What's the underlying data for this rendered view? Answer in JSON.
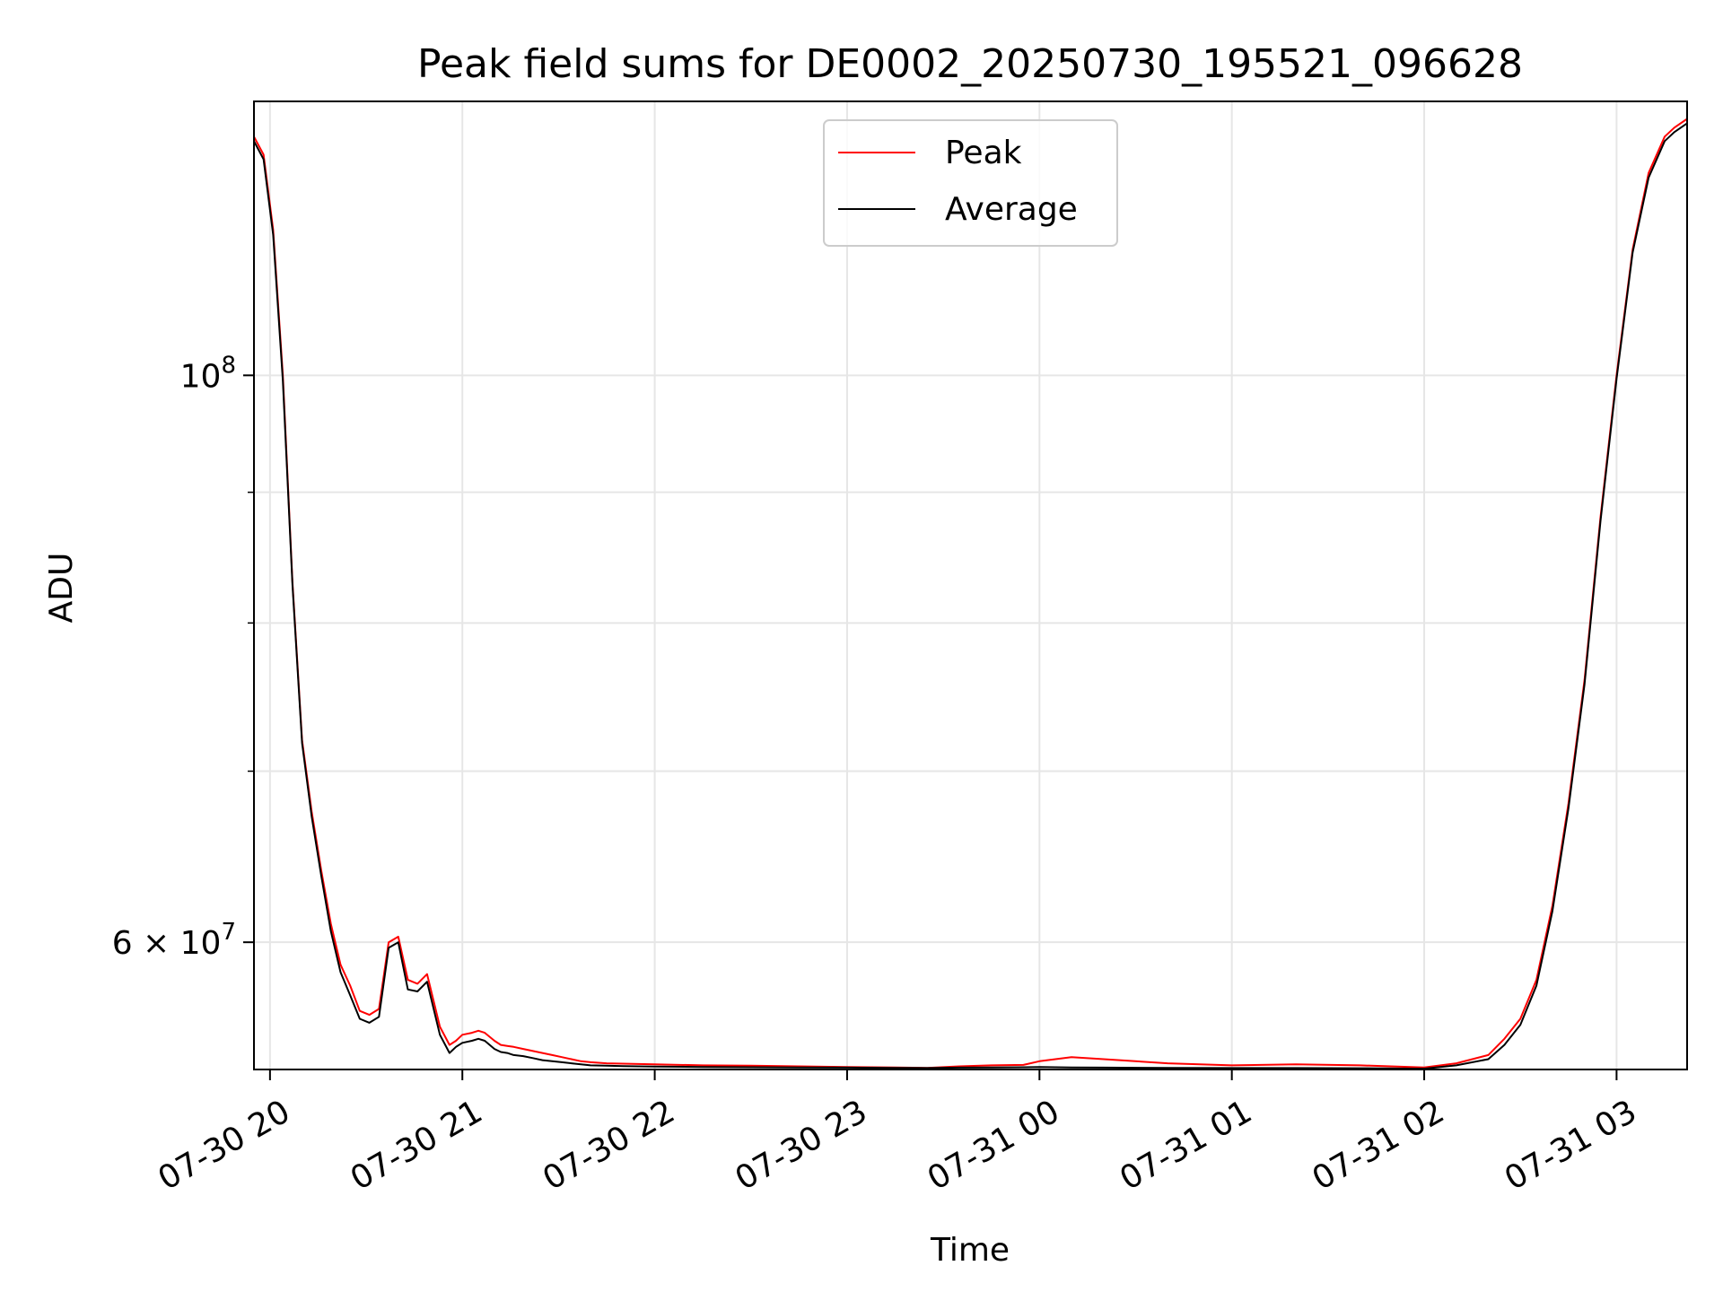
{
  "chart_data": {
    "type": "line",
    "title": "Peak field sums for DE0002_20250730_195521_096628",
    "xlabel": "Time",
    "ylabel": "ADU",
    "y_scale": "log",
    "ylim": [
      53500000,
      128000000
    ],
    "xlim": [
      "2025-07-30 19:55",
      "2025-07-31 03:22"
    ],
    "x_tick_labels": [
      "07-30 20",
      "07-30 21",
      "07-30 22",
      "07-30 23",
      "07-31 00",
      "07-31 01",
      "07-31 02",
      "07-31 03"
    ],
    "x_tick_values": [
      "2025-07-30 20:00",
      "2025-07-30 21:00",
      "2025-07-30 22:00",
      "2025-07-30 23:00",
      "2025-07-31 00:00",
      "2025-07-31 01:00",
      "2025-07-31 02:00",
      "2025-07-31 03:00"
    ],
    "y_major_ticks": [
      {
        "value": 60000000,
        "mantissa": "6",
        "exponent": "7"
      },
      {
        "value": 100000000,
        "mantissa": "",
        "exponent": "8"
      }
    ],
    "y_minor_ticks": [
      70000000,
      80000000,
      90000000
    ],
    "grid": true,
    "legend_position": "upper-center",
    "series": [
      {
        "name": "Peak",
        "color": "#ff0000",
        "x": [
          "2025-07-30 19:55",
          "2025-07-30 19:58",
          "2025-07-30 20:01",
          "2025-07-30 20:04",
          "2025-07-30 20:07",
          "2025-07-30 20:10",
          "2025-07-30 20:13",
          "2025-07-30 20:16",
          "2025-07-30 20:19",
          "2025-07-30 20:22",
          "2025-07-30 20:25",
          "2025-07-30 20:28",
          "2025-07-30 20:31",
          "2025-07-30 20:34",
          "2025-07-30 20:37",
          "2025-07-30 20:40",
          "2025-07-30 20:43",
          "2025-07-30 20:46",
          "2025-07-30 20:49",
          "2025-07-30 20:53",
          "2025-07-30 20:56",
          "2025-07-30 20:58",
          "2025-07-30 21:00",
          "2025-07-30 21:03",
          "2025-07-30 21:05",
          "2025-07-30 21:07",
          "2025-07-30 21:10",
          "2025-07-30 21:12",
          "2025-07-30 21:14",
          "2025-07-30 21:16",
          "2025-07-30 21:19",
          "2025-07-30 21:22",
          "2025-07-30 21:25",
          "2025-07-30 21:28",
          "2025-07-30 21:31",
          "2025-07-30 21:34",
          "2025-07-30 21:37",
          "2025-07-30 21:40",
          "2025-07-30 21:45",
          "2025-07-30 21:50",
          "2025-07-30 22:00",
          "2025-07-30 22:15",
          "2025-07-30 22:30",
          "2025-07-30 22:45",
          "2025-07-30 23:00",
          "2025-07-30 23:15",
          "2025-07-30 23:25",
          "2025-07-30 23:35",
          "2025-07-30 23:45",
          "2025-07-30 23:55",
          "2025-07-31 00:00",
          "2025-07-31 00:10",
          "2025-07-31 00:20",
          "2025-07-31 00:40",
          "2025-07-31 01:00",
          "2025-07-31 01:20",
          "2025-07-31 01:40",
          "2025-07-31 02:00",
          "2025-07-31 02:10",
          "2025-07-31 02:20",
          "2025-07-31 02:25",
          "2025-07-31 02:30",
          "2025-07-31 02:35",
          "2025-07-31 02:40",
          "2025-07-31 02:45",
          "2025-07-31 02:50",
          "2025-07-31 02:55",
          "2025-07-31 03:00",
          "2025-07-31 03:05",
          "2025-07-31 03:10",
          "2025-07-31 03:15",
          "2025-07-31 03:18",
          "2025-07-31 03:22"
        ],
        "y": [
          124000000,
          122000000,
          114000000,
          100000000,
          83000000,
          72000000,
          67500000,
          64000000,
          61000000,
          58800000,
          57700000,
          56400000,
          56200000,
          56500000,
          60000000,
          60300000,
          58000000,
          57800000,
          58300000,
          55600000,
          54700000,
          54900000,
          55200000,
          55300000,
          55400000,
          55300000,
          54900000,
          54700000,
          54650000,
          54600000,
          54500000,
          54400000,
          54300000,
          54200000,
          54100000,
          54000000,
          53900000,
          53850000,
          53800000,
          53780000,
          53750000,
          53700000,
          53680000,
          53650000,
          53620000,
          53600000,
          53580000,
          53650000,
          53700000,
          53720000,
          53900000,
          54100000,
          54000000,
          53800000,
          53700000,
          53750000,
          53700000,
          53600000,
          53800000,
          54200000,
          55000000,
          56000000,
          58000000,
          62000000,
          68000000,
          76000000,
          88000000,
          100000000,
          112000000,
          120000000,
          124000000,
          125000000,
          126000000
        ]
      },
      {
        "name": "Average",
        "color": "#000000",
        "x": [
          "2025-07-30 19:55",
          "2025-07-30 19:58",
          "2025-07-30 20:01",
          "2025-07-30 20:04",
          "2025-07-30 20:07",
          "2025-07-30 20:10",
          "2025-07-30 20:13",
          "2025-07-30 20:16",
          "2025-07-30 20:19",
          "2025-07-30 20:22",
          "2025-07-30 20:25",
          "2025-07-30 20:28",
          "2025-07-30 20:31",
          "2025-07-30 20:34",
          "2025-07-30 20:37",
          "2025-07-30 20:40",
          "2025-07-30 20:43",
          "2025-07-30 20:46",
          "2025-07-30 20:49",
          "2025-07-30 20:53",
          "2025-07-30 20:56",
          "2025-07-30 20:58",
          "2025-07-30 21:00",
          "2025-07-30 21:03",
          "2025-07-30 21:05",
          "2025-07-30 21:07",
          "2025-07-30 21:10",
          "2025-07-30 21:12",
          "2025-07-30 21:14",
          "2025-07-30 21:16",
          "2025-07-30 21:19",
          "2025-07-30 21:22",
          "2025-07-30 21:25",
          "2025-07-30 21:28",
          "2025-07-30 21:31",
          "2025-07-30 21:34",
          "2025-07-30 21:37",
          "2025-07-30 21:40",
          "2025-07-30 21:45",
          "2025-07-30 21:50",
          "2025-07-30 22:00",
          "2025-07-30 22:15",
          "2025-07-30 22:30",
          "2025-07-30 22:45",
          "2025-07-30 23:00",
          "2025-07-30 23:15",
          "2025-07-30 23:25",
          "2025-07-30 23:35",
          "2025-07-30 23:45",
          "2025-07-30 23:55",
          "2025-07-31 00:00",
          "2025-07-31 00:10",
          "2025-07-31 00:20",
          "2025-07-31 00:40",
          "2025-07-31 01:00",
          "2025-07-31 01:20",
          "2025-07-31 01:40",
          "2025-07-31 02:00",
          "2025-07-31 02:10",
          "2025-07-31 02:20",
          "2025-07-31 02:25",
          "2025-07-31 02:30",
          "2025-07-31 02:35",
          "2025-07-31 02:40",
          "2025-07-31 02:45",
          "2025-07-31 02:50",
          "2025-07-31 02:55",
          "2025-07-31 03:00",
          "2025-07-31 03:05",
          "2025-07-31 03:10",
          "2025-07-31 03:15",
          "2025-07-31 03:18",
          "2025-07-31 03:22"
        ],
        "y": [
          123500000,
          121500000,
          113500000,
          99500000,
          82800000,
          71800000,
          67200000,
          63700000,
          60600000,
          58400000,
          57200000,
          56000000,
          55800000,
          56100000,
          59700000,
          60000000,
          57500000,
          57400000,
          57900000,
          55200000,
          54300000,
          54600000,
          54800000,
          54900000,
          55000000,
          54900000,
          54500000,
          54350000,
          54300000,
          54200000,
          54150000,
          54050000,
          53950000,
          53900000,
          53850000,
          53800000,
          53750000,
          53700000,
          53680000,
          53660000,
          53640000,
          53620000,
          53610000,
          53600000,
          53590000,
          53580000,
          53570000,
          53590000,
          53600000,
          53610000,
          53620000,
          53600000,
          53590000,
          53580000,
          53570000,
          53570000,
          53560000,
          53540000,
          53700000,
          54000000,
          54700000,
          55700000,
          57700000,
          61700000,
          67700000,
          75700000,
          87700000,
          99700000,
          111700000,
          119500000,
          123500000,
          124500000,
          125500000
        ]
      }
    ]
  }
}
